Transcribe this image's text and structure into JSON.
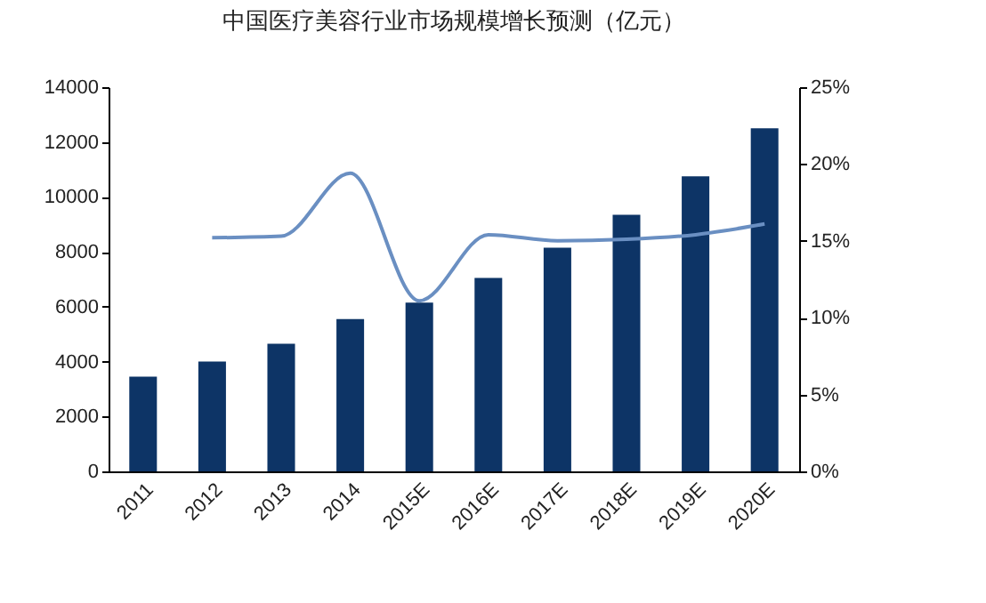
{
  "chart_data": {
    "type": "bar",
    "title": "中国医疗美容行业市场规模增长预测（亿元）",
    "categories": [
      "2011",
      "2012",
      "2013",
      "2014",
      "2015E",
      "2016E",
      "2017E",
      "2018E",
      "2019E",
      "2020E"
    ],
    "series": [
      {
        "color": "#0d3466",
        "values": [
          3450,
          4000,
          4650,
          5550,
          6150,
          7050,
          8150,
          9350,
          10750,
          12500
        ]
      },
      {
        "type": "line",
        "axis": "y2",
        "color": "#6a8fc2",
        "values": [
          null,
          15.2,
          15.3,
          19.4,
          11.1,
          15.4,
          15.0,
          15.1,
          15.4,
          16.1
        ]
      }
    ],
    "ylim": [
      0,
      14000
    ],
    "yticks": [
      0,
      2000,
      4000,
      6000,
      8000,
      10000,
      12000,
      14000
    ],
    "y2lim": [
      0,
      25
    ],
    "y2ticks": [
      {
        "value": 0,
        "label": "0%"
      },
      {
        "value": 5,
        "label": "5%"
      },
      {
        "value": 10,
        "label": "10%"
      },
      {
        "value": 15,
        "label": "15%"
      },
      {
        "value": 20,
        "label": "20%"
      },
      {
        "value": 25,
        "label": "25%"
      }
    ],
    "grid": false,
    "marker": "none",
    "line_style": "solid"
  }
}
